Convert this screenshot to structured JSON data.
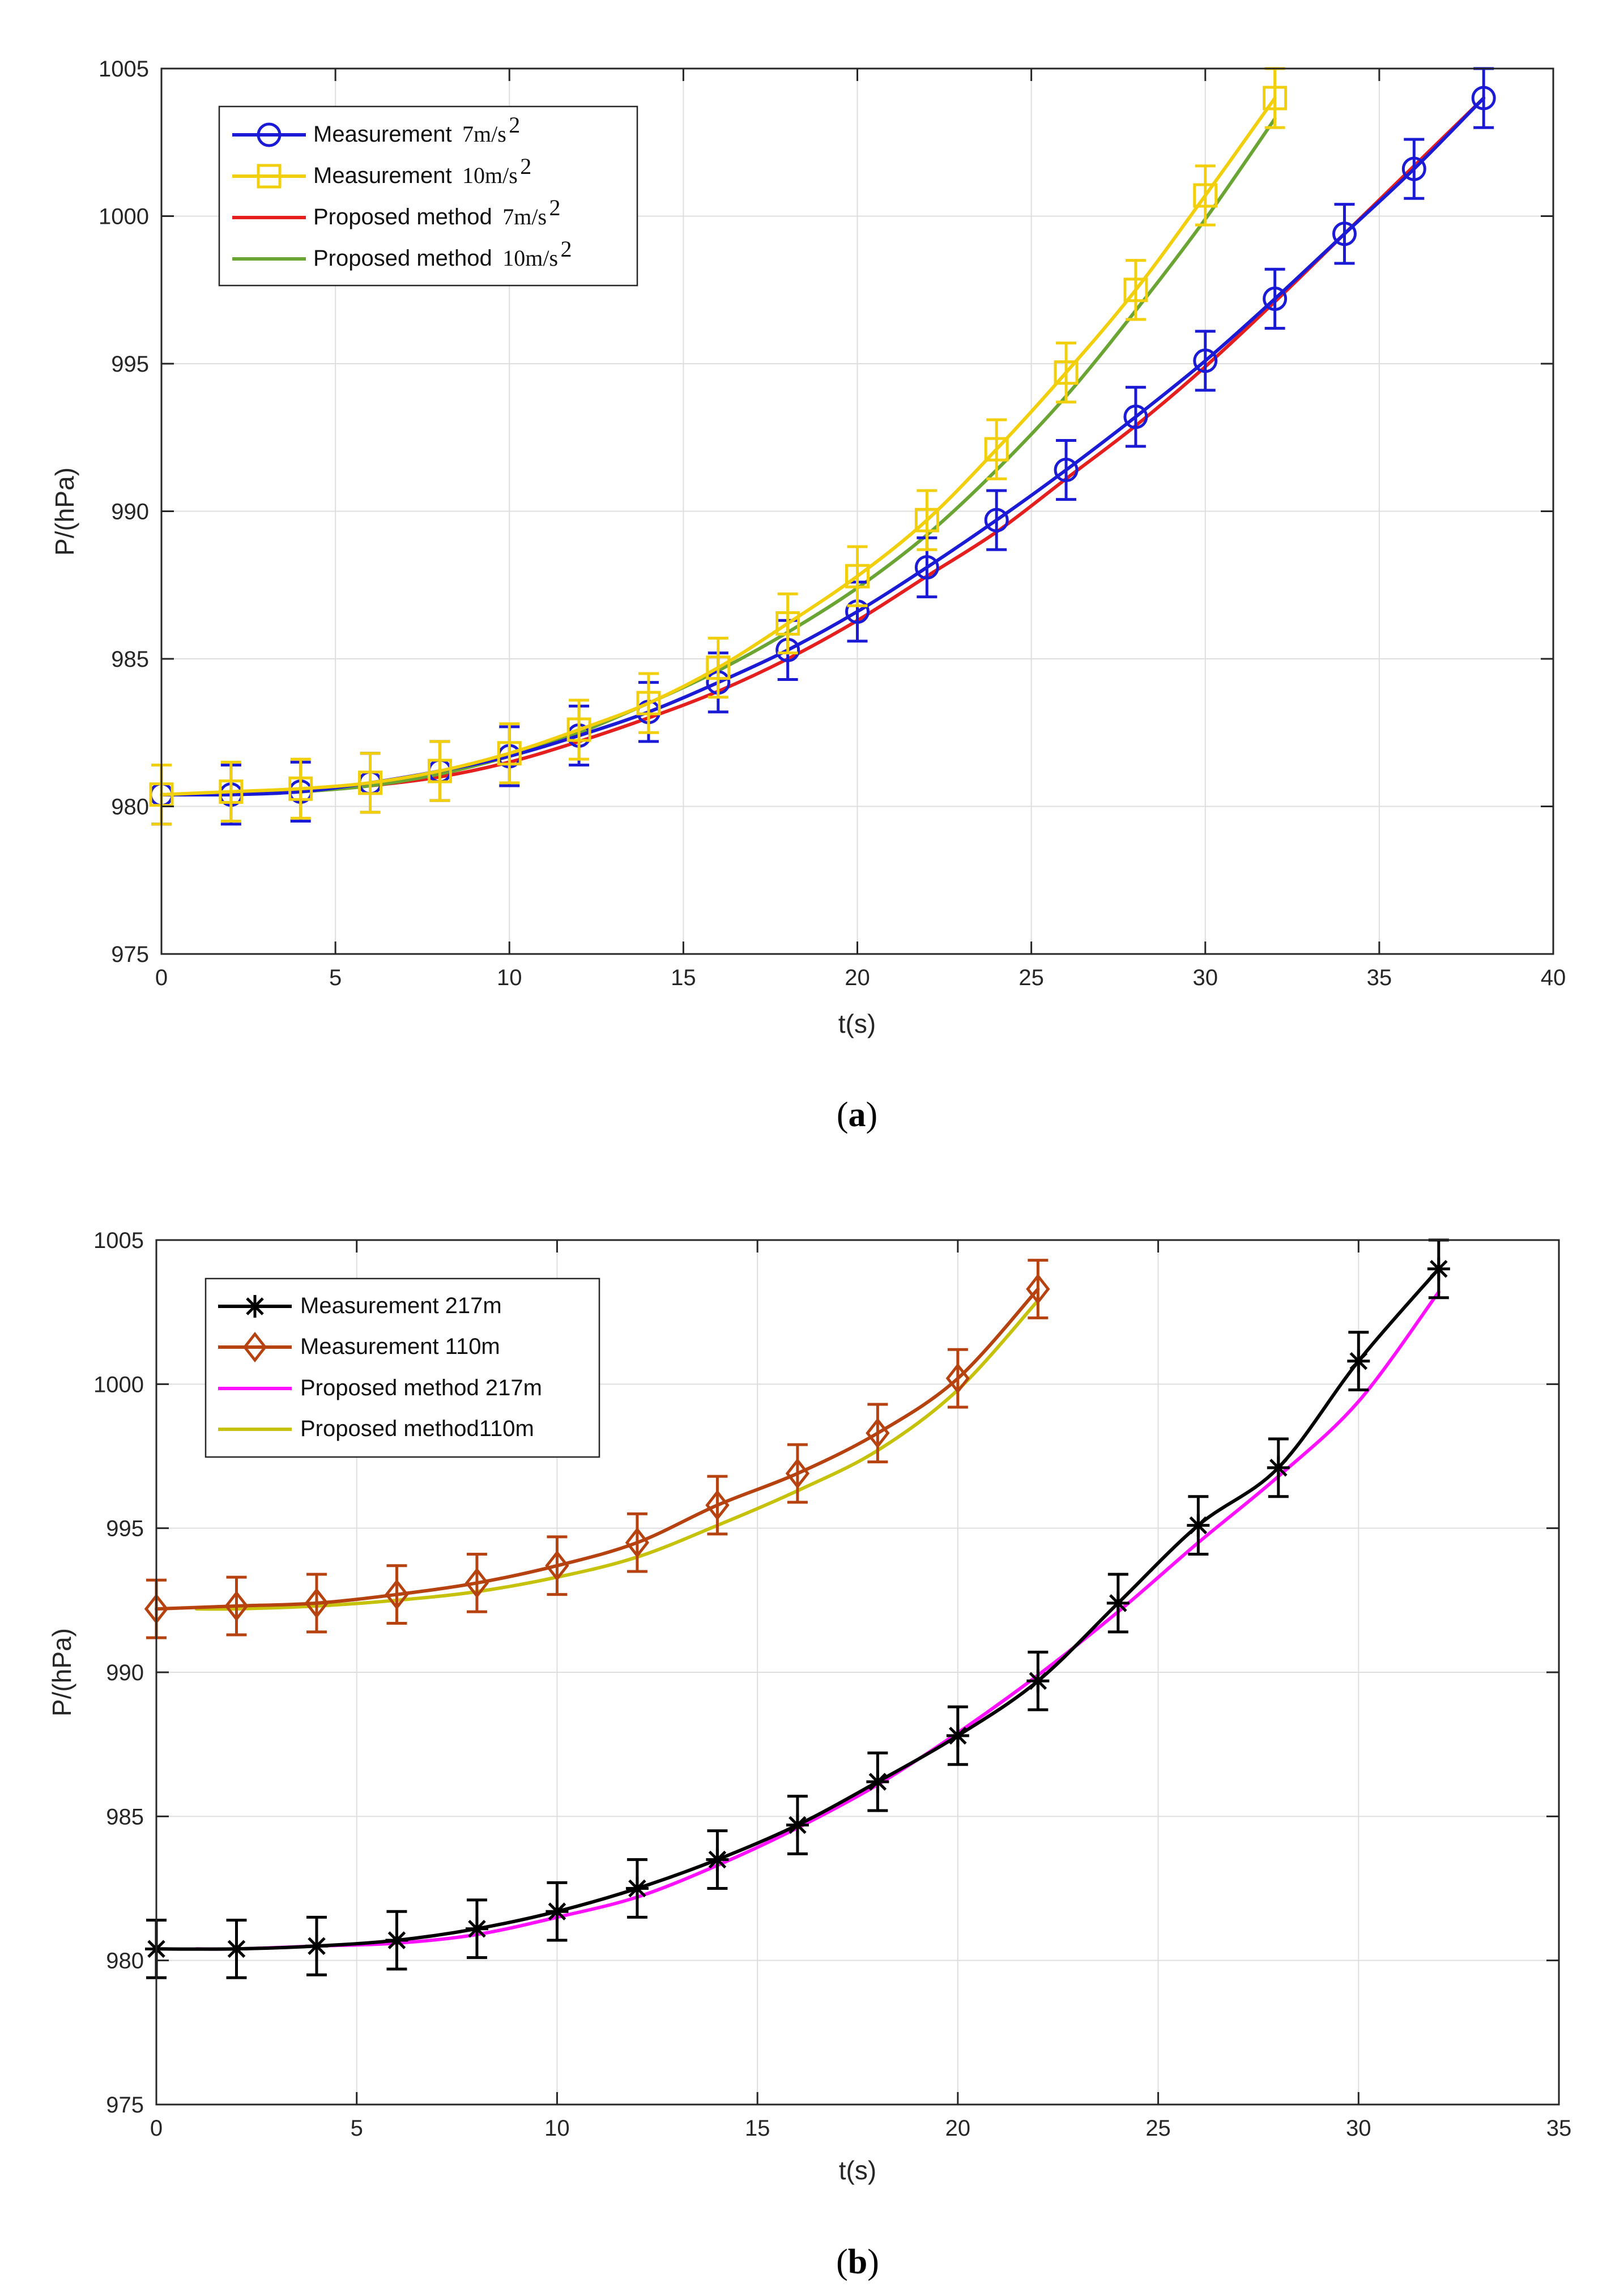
{
  "chart_data": [
    {
      "type": "line",
      "caption": {
        "open": "(",
        "letter": "a",
        "close": ")"
      },
      "xlabel": "t(s)",
      "ylabel": "P/(hPa)",
      "xlim": [
        0,
        40
      ],
      "ylim": [
        975,
        1005
      ],
      "xticks": [
        "0",
        "5",
        "10",
        "15",
        "20",
        "25",
        "30",
        "35",
        "40"
      ],
      "yticks": [
        "975",
        "980",
        "985",
        "990",
        "995",
        "1000",
        "1005"
      ],
      "grid": true,
      "legend_position": "top-left",
      "series": [
        {
          "name": "Measurement 7m/s2",
          "legend": {
            "text": "Measurement",
            "unit": "7m/s",
            "exponent": "2"
          },
          "color": "#1b1bd6",
          "marker": "circle",
          "error": 1,
          "x": [
            0,
            2,
            4,
            6,
            8,
            10,
            12,
            14,
            16,
            18,
            20,
            22,
            24,
            26,
            28,
            30,
            32,
            34,
            36,
            38
          ],
          "y": [
            980.4,
            980.4,
            980.5,
            980.8,
            981.2,
            981.7,
            982.4,
            983.2,
            984.2,
            985.3,
            986.6,
            988.1,
            989.7,
            991.4,
            993.2,
            995.1,
            997.2,
            999.4,
            1001.6,
            1004.0
          ]
        },
        {
          "name": "Measurement 10m/s2",
          "legend": {
            "text": "Measurement",
            "unit": "10m/s",
            "exponent": "2"
          },
          "color": "#f2cf0c",
          "marker": "square",
          "error": 1,
          "x": [
            0,
            2,
            4,
            6,
            8,
            10,
            12,
            14,
            16,
            18,
            20,
            22,
            24,
            26,
            28,
            30,
            32
          ],
          "y": [
            980.4,
            980.5,
            980.6,
            980.8,
            981.2,
            981.8,
            982.6,
            983.5,
            984.7,
            986.2,
            987.8,
            989.7,
            992.1,
            994.7,
            997.5,
            1000.7,
            1004.0
          ]
        },
        {
          "name": "Proposed method 7m/s2",
          "legend": {
            "text": "Proposed method",
            "unit": "7m/s",
            "exponent": "2"
          },
          "color": "#e51e1e",
          "marker": "none",
          "x": [
            0,
            2,
            4,
            6,
            8,
            10,
            12,
            14,
            16,
            18,
            20,
            22,
            24,
            26,
            28,
            30,
            32,
            34,
            36,
            38
          ],
          "y": [
            980.4,
            980.4,
            980.5,
            980.7,
            981.0,
            981.5,
            982.2,
            983.0,
            983.9,
            985.0,
            986.3,
            987.8,
            989.3,
            991.1,
            992.9,
            994.9,
            997.1,
            999.4,
            1001.7,
            1004.0
          ]
        },
        {
          "name": "Proposed method 10m/s2",
          "legend": {
            "text": "Proposed method",
            "unit": "10m/s",
            "exponent": "2"
          },
          "color": "#6aa534",
          "marker": "none",
          "x": [
            0,
            2,
            4,
            6,
            8,
            10,
            12,
            14,
            16,
            18,
            20,
            22,
            24,
            26,
            28,
            30,
            32
          ],
          "y": [
            980.4,
            980.4,
            980.5,
            980.7,
            981.1,
            981.7,
            982.5,
            983.5,
            984.6,
            985.9,
            987.4,
            989.2,
            991.4,
            993.9,
            996.8,
            999.9,
            1003.3
          ]
        }
      ]
    },
    {
      "type": "line",
      "caption": {
        "open": "(",
        "letter": "b",
        "close": ")"
      },
      "xlabel": "t(s)",
      "ylabel": "P/(hPa)",
      "xlim": [
        0,
        35
      ],
      "ylim": [
        975,
        1005
      ],
      "xticks": [
        "0",
        "5",
        "10",
        "15",
        "20",
        "25",
        "30",
        "35"
      ],
      "yticks": [
        "975",
        "980",
        "985",
        "990",
        "995",
        "1000",
        "1005"
      ],
      "grid": true,
      "legend_position": "top-left",
      "series": [
        {
          "name": "Measurement 217m",
          "legend": {
            "text": "Measurement 217m"
          },
          "color": "#000000",
          "marker": "asterisk",
          "error": 1,
          "x": [
            0,
            2,
            4,
            6,
            8,
            10,
            12,
            14,
            16,
            18,
            20,
            22,
            24,
            26,
            28,
            30,
            32
          ],
          "y": [
            980.4,
            980.4,
            980.5,
            980.7,
            981.1,
            981.7,
            982.5,
            983.5,
            984.7,
            986.2,
            987.8,
            989.7,
            992.4,
            995.1,
            997.1,
            1000.8,
            1004.0
          ]
        },
        {
          "name": "Measurement 110m",
          "legend": {
            "text": "Measurement 110m"
          },
          "color": "#b6420f",
          "marker": "diamond",
          "error": 1,
          "x": [
            0,
            2,
            4,
            6,
            8,
            10,
            12,
            14,
            16,
            18,
            20,
            22
          ],
          "y": [
            992.2,
            992.3,
            992.4,
            992.7,
            993.1,
            993.7,
            994.5,
            995.8,
            996.9,
            998.3,
            1000.2,
            1003.3
          ]
        },
        {
          "name": "Proposed method 217m",
          "legend": {
            "text": "Proposed method 217m"
          },
          "color": "#ff11ff",
          "marker": "none",
          "x": [
            1,
            2,
            4,
            6,
            8,
            10,
            12,
            14,
            16,
            18,
            20,
            22,
            24,
            26,
            28,
            30,
            32
          ],
          "y": [
            980.4,
            980.4,
            980.5,
            980.6,
            980.9,
            981.5,
            982.2,
            983.3,
            984.6,
            986.1,
            987.9,
            989.9,
            992.1,
            994.5,
            996.8,
            999.4,
            1003.2
          ]
        },
        {
          "name": "Proposed method110m",
          "legend": {
            "text": "Proposed method110m"
          },
          "color": "#c6c20c",
          "marker": "none",
          "x": [
            1,
            2,
            4,
            6,
            8,
            10,
            12,
            14,
            16,
            18,
            20,
            22
          ],
          "y": [
            992.2,
            992.2,
            992.3,
            992.5,
            992.8,
            993.3,
            994.0,
            995.1,
            996.3,
            997.7,
            999.8,
            1002.9
          ]
        }
      ]
    }
  ]
}
